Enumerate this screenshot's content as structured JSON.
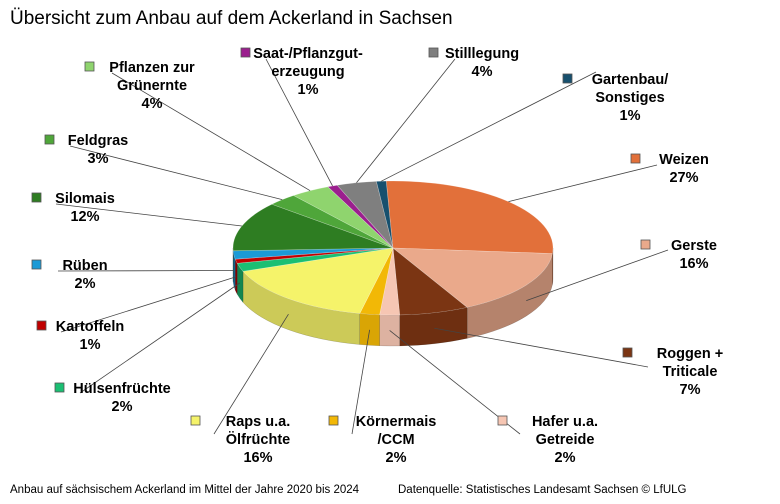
{
  "title": "Übersicht zum Anbau auf dem Ackerland in Sachsen",
  "footer_left": "Anbau auf sächsischem Ackerland im Mittel der Jahre 2020 bis 2024",
  "footer_right": "Datenquelle: Statistisches Landesamt Sachsen  © LfULG",
  "chart_data": {
    "type": "pie",
    "title": "Übersicht zum Anbau auf dem Ackerland in Sachsen",
    "unit": "%",
    "slices": [
      {
        "name": "Gartenbau/ Sonstiges",
        "lines": [
          "Gartenbau/",
          "Sonstiges"
        ],
        "value": 1,
        "label": "1%",
        "color": "#17506e"
      },
      {
        "name": "Weizen",
        "lines": [
          "Weizen"
        ],
        "value": 27,
        "label": "27%",
        "color": "#e2703a"
      },
      {
        "name": "Gerste",
        "lines": [
          "Gerste"
        ],
        "value": 16,
        "label": "16%",
        "color": "#eaa98b"
      },
      {
        "name": "Roggen + Triticale",
        "lines": [
          "Roggen +",
          "Triticale"
        ],
        "value": 7,
        "label": "7%",
        "color": "#7b3513"
      },
      {
        "name": "Hafer u.a. Getreide",
        "lines": [
          "Hafer u.a.",
          "Getreide"
        ],
        "value": 2,
        "label": "2%",
        "color": "#f6c6b3"
      },
      {
        "name": "Körnermais /CCM",
        "lines": [
          "Körnermais",
          "/CCM"
        ],
        "value": 2,
        "label": "2%",
        "color": "#f2b806"
      },
      {
        "name": "Raps u.a. Ölfrüchte",
        "lines": [
          "Raps u.a.",
          "Ölfrüchte"
        ],
        "value": 16,
        "label": "16%",
        "color": "#f5f36a"
      },
      {
        "name": "Hülsenfrüchte",
        "lines": [
          "Hülsenfrüchte"
        ],
        "value": 2,
        "label": "2%",
        "color": "#1bbf73"
      },
      {
        "name": "Kartoffeln",
        "lines": [
          "Kartoffeln"
        ],
        "value": 1,
        "label": "1%",
        "color": "#c00000"
      },
      {
        "name": "Rüben",
        "lines": [
          "Rüben"
        ],
        "value": 2,
        "label": "2%",
        "color": "#1b9ad6"
      },
      {
        "name": "Silomais",
        "lines": [
          "Silomais"
        ],
        "value": 12,
        "label": "12%",
        "color": "#2e7d22"
      },
      {
        "name": "Feldgras",
        "lines": [
          "Feldgras"
        ],
        "value": 3,
        "label": "3%",
        "color": "#4fa63a"
      },
      {
        "name": "Pflanzen zur Grünernte",
        "lines": [
          "Pflanzen zur",
          "Grünernte"
        ],
        "value": 4,
        "label": "4%",
        "color": "#8fd46e"
      },
      {
        "name": "Saat-/Pflanzgut-erzeugung",
        "lines": [
          "Saat-/Pflanzgut-",
          "erzeugung"
        ],
        "value": 1,
        "label": "1%",
        "color": "#9b1f8e"
      },
      {
        "name": "Stilllegung",
        "lines": [
          "Stilllegung"
        ],
        "value": 4,
        "label": "4%",
        "color": "#7f7f7f"
      }
    ]
  }
}
